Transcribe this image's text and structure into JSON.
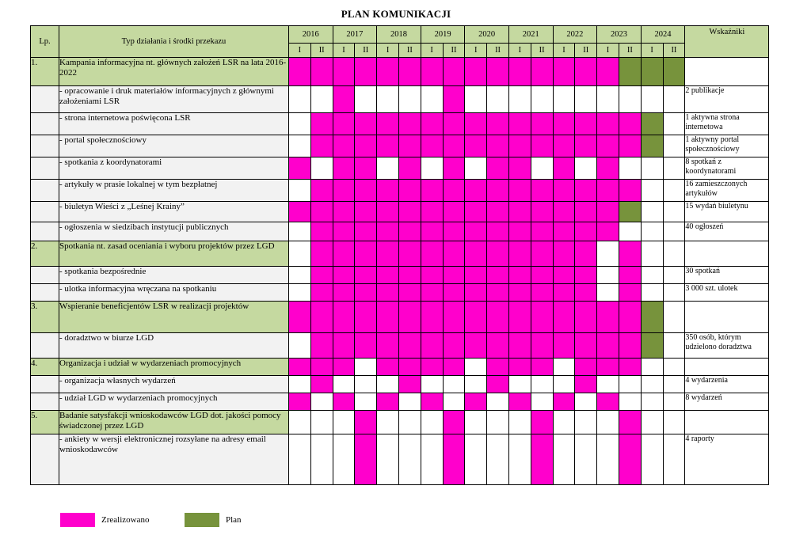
{
  "title": "PLAN KOMUNIKACJI",
  "header": {
    "lp": "Lp.",
    "type": "Typ działania i środki przekazu",
    "indicators": "Wskaźniki",
    "years": [
      "2016",
      "2017",
      "2018",
      "2019",
      "2020",
      "2021",
      "2022",
      "2023",
      "2024"
    ],
    "halves": [
      "I",
      "II"
    ]
  },
  "rows": [
    {
      "lp": "1.",
      "desc": "Kampania informacyjna nt. głównych założeń LSR na lata 2016-2022",
      "main": true,
      "ind": "",
      "cells": "PPPPPPPPPPPPPPPGGG"
    },
    {
      "lp": "",
      "desc": "- opracowanie i druk materiałów informacyjnych z głównymi założeniami LSR",
      "main": false,
      "ind": "2 publikacje",
      "cells": "..P....P.........."
    },
    {
      "lp": "",
      "desc": "- strona internetowa poświęcona LSR",
      "main": false,
      "ind": "1 aktywna strona internetowa",
      "cells": ".PPPPPPPPPPPPPPPG."
    },
    {
      "lp": "",
      "desc": "- portal społecznościowy",
      "main": false,
      "ind": "1 aktywny portal społecznościowy",
      "cells": ".PPPPPPPPPPPPPPPG."
    },
    {
      "lp": "",
      "desc": "- spotkania z koordynatorami",
      "main": false,
      "ind": "8 spotkań z koordynatorami",
      "cells": "P.PP.P.P.PP.P.P..."
    },
    {
      "lp": "",
      "desc": "- artykuły w prasie lokalnej w tym bezpłatnej",
      "main": false,
      "ind": "16 zamieszczonych artykułów",
      "cells": ".PPPPPPPPPPPPPPP.."
    },
    {
      "lp": "",
      "desc": "- biuletyn Wieści z „Leśnej Krainy”",
      "main": false,
      "ind": "15 wydań biuletynu",
      "cells": "PPPPPPPPPPPPPPPG.."
    },
    {
      "lp": "",
      "desc": "- ogłoszenia w siedzibach instytucji publicznych",
      "main": false,
      "ind": "40 ogłoszeń",
      "cells": ".PPPPPPPPPPPPPP..."
    },
    {
      "lp": "2.",
      "desc": "Spotkania nt. zasad oceniania i wyboru projektów przez LGD",
      "main": true,
      "ind": "",
      "cells": ".PPPPPPPPPPPPP.P.."
    },
    {
      "lp": "",
      "desc": "- spotkania bezpośrednie",
      "main": false,
      "ind": "30 spotkań",
      "cells": ".PPPPPPPPPPPPP.P.."
    },
    {
      "lp": "",
      "desc": "- ulotka informacyjna wręczana na spotkaniu",
      "main": false,
      "ind": "3 000 szt. ulotek",
      "cells": ".PPPPPPPPPPPPP.P.."
    },
    {
      "lp": "3.",
      "desc": "Wspieranie beneficjentów LSR w realizacji projektów",
      "main": true,
      "ind": "",
      "cells": "PPPPPPPPPPPPPPPPG."
    },
    {
      "lp": "",
      "desc": "- doradztwo w biurze LGD",
      "main": false,
      "ind": "350 osób, którym udzielono doradztwa",
      "cells": ".PPPPPPPPPPPPPPPG."
    },
    {
      "lp": "4.",
      "desc": "Organizacja i udział w wydarzeniach promocyjnych",
      "main": true,
      "ind": "",
      "cells": "PPP.PPPP.PPP.PPP.."
    },
    {
      "lp": "",
      "desc": "- organizacja własnych wydarzeń",
      "main": false,
      "ind": "4 wydarzenia",
      "cells": ".P...P...P...P...."
    },
    {
      "lp": "",
      "desc": "- udział LGD w wydarzeniach promocyjnych",
      "main": false,
      "ind": "8 wydarzeń",
      "cells": "P.P.P.P.P.P.P.P..."
    },
    {
      "lp": "5.",
      "desc": "Badanie satysfakcji wnioskodawców LGD dot. jakości pomocy świadczonej przez LGD",
      "main": true,
      "ind": "",
      "cells": "...P...P...P...P.."
    },
    {
      "lp": "",
      "desc": "- ankiety w wersji elektronicznej rozsyłane na adresy email wnioskodawców",
      "main": false,
      "ind": "4 raporty",
      "cells": "...P...P...P...P.."
    }
  ],
  "legend": {
    "done": "Zrealizowano",
    "plan": "Plan"
  },
  "colors": {
    "done": "#ff00cc",
    "plan": "#77933c",
    "header": "#c5d9a0",
    "subrow": "#f2f2f2"
  }
}
